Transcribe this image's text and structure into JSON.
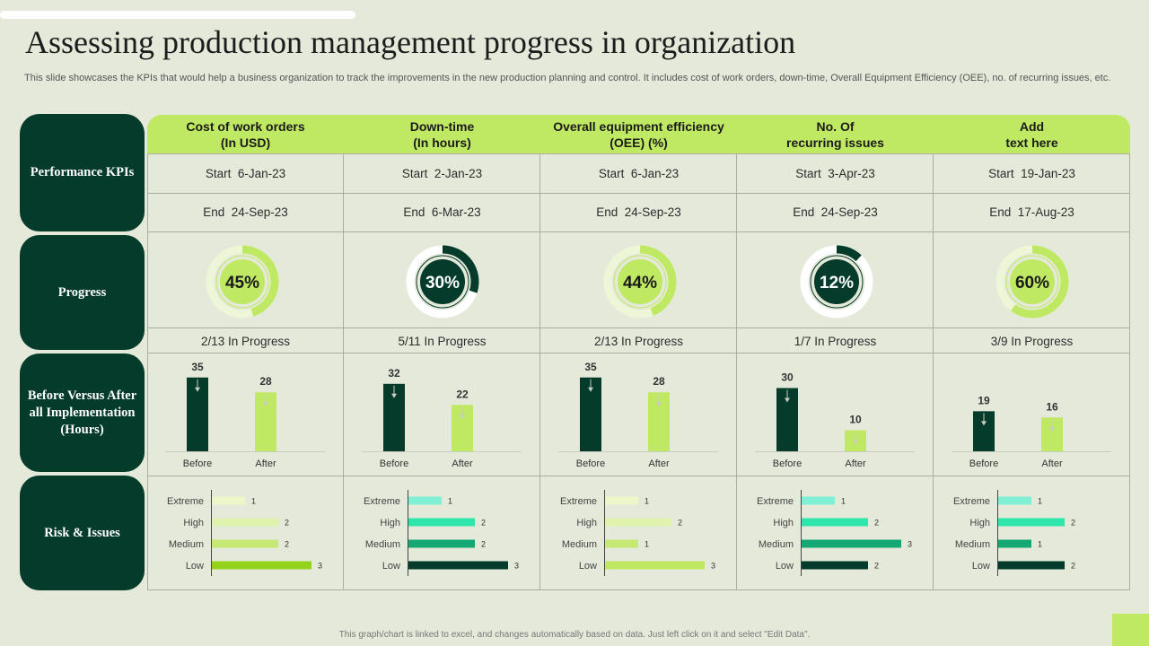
{
  "title": "Assessing production management progress in organization",
  "subtitle": "This slide showcases the KPIs that would help a business organization to track the improvements in the new production planning and control. It includes cost of work orders, down-time, Overall Equipment Efficiency (OEE), no. of recurring issues, etc.",
  "row_labels": [
    "Performance KPIs",
    "Progress",
    "Before Versus After all Implementation (Hours)",
    "Risk & Issues"
  ],
  "footer": "This graph/chart is linked to excel, and changes automatically based on data. Just left click on it and select \"Edit Data\".",
  "colors": {
    "dark_green": "#043b2b",
    "lime": "#c0e963",
    "background": "#e4e9da"
  },
  "chart_data": [
    {
      "header_line1": "Cost of work orders",
      "header_line2": "(In USD)",
      "start_label": "Start",
      "start_date": "6-Jan-23",
      "end_label": "End",
      "end_date": "24-Sep-23",
      "progress": {
        "type": "donut",
        "value": 45,
        "label": "45%",
        "style": "light"
      },
      "progress_text": "2/13 In Progress",
      "before_after": {
        "type": "bar",
        "categories": [
          "Before",
          "After"
        ],
        "values": [
          35,
          28
        ]
      },
      "risks": {
        "type": "bar",
        "categories": [
          "Extreme",
          "High",
          "Medium",
          "Low"
        ],
        "values": [
          1,
          2,
          2,
          3
        ],
        "colors": [
          "#ecf6c9",
          "#e0f3ad",
          "#c6e875",
          "#94d21c"
        ]
      }
    },
    {
      "header_line1": "Down-time",
      "header_line2": "(In hours)",
      "start_label": "Start",
      "start_date": "2-Jan-23",
      "end_label": "End",
      "end_date": "6-Mar-23",
      "progress": {
        "type": "donut",
        "value": 30,
        "label": "30%",
        "style": "dark"
      },
      "progress_text": "5/11 In Progress",
      "before_after": {
        "type": "bar",
        "categories": [
          "Before",
          "After"
        ],
        "values": [
          32,
          22
        ]
      },
      "risks": {
        "type": "bar",
        "categories": [
          "Extreme",
          "High",
          "Medium",
          "Low"
        ],
        "values": [
          1,
          2,
          2,
          3
        ],
        "colors": [
          "#7ff0d3",
          "#2ee6a9",
          "#16a874",
          "#043b2b"
        ]
      }
    },
    {
      "header_line1": "Overall equipment efficiency",
      "header_line2": "(OEE) (%)",
      "start_label": "Start",
      "start_date": "6-Jan-23",
      "end_label": "End",
      "end_date": "24-Sep-23",
      "progress": {
        "type": "donut",
        "value": 44,
        "label": "44%",
        "style": "light"
      },
      "progress_text": "2/13 In Progress",
      "before_after": {
        "type": "bar",
        "categories": [
          "Before",
          "After"
        ],
        "values": [
          35,
          28
        ]
      },
      "risks": {
        "type": "bar",
        "categories": [
          "Extreme",
          "High",
          "Medium",
          "Low"
        ],
        "values": [
          1,
          2,
          1,
          3
        ],
        "colors": [
          "#ecf6c9",
          "#e0f3ad",
          "#c6e875",
          "#bde85f"
        ]
      }
    },
    {
      "header_line1": "No. Of",
      "header_line2": "recurring issues",
      "start_label": "Start",
      "start_date": "3-Apr-23",
      "end_label": "End",
      "end_date": "24-Sep-23",
      "progress": {
        "type": "donut",
        "value": 12,
        "label": "12%",
        "style": "dark"
      },
      "progress_text": "1/7 In Progress",
      "before_after": {
        "type": "bar",
        "categories": [
          "Before",
          "After"
        ],
        "values": [
          30,
          10
        ]
      },
      "risks": {
        "type": "bar",
        "categories": [
          "Extreme",
          "High",
          "Medium",
          "Low"
        ],
        "values": [
          1,
          2,
          3,
          2
        ],
        "colors": [
          "#7ff0d3",
          "#2ee6a9",
          "#16a874",
          "#043b2b"
        ]
      }
    },
    {
      "header_line1": "Add",
      "header_line2": "text here",
      "start_label": "Start",
      "start_date": "19-Jan-23",
      "end_label": "End",
      "end_date": "17-Aug-23",
      "progress": {
        "type": "donut",
        "value": 60,
        "label": "60%",
        "style": "light"
      },
      "progress_text": "3/9 In Progress",
      "before_after": {
        "type": "bar",
        "categories": [
          "Before",
          "After"
        ],
        "values": [
          19,
          16
        ]
      },
      "risks": {
        "type": "bar",
        "categories": [
          "Extreme",
          "High",
          "Medium",
          "Low"
        ],
        "values": [
          1,
          2,
          1,
          2
        ],
        "colors": [
          "#7ff0d3",
          "#2ee6a9",
          "#16a874",
          "#043b2b"
        ]
      }
    }
  ]
}
